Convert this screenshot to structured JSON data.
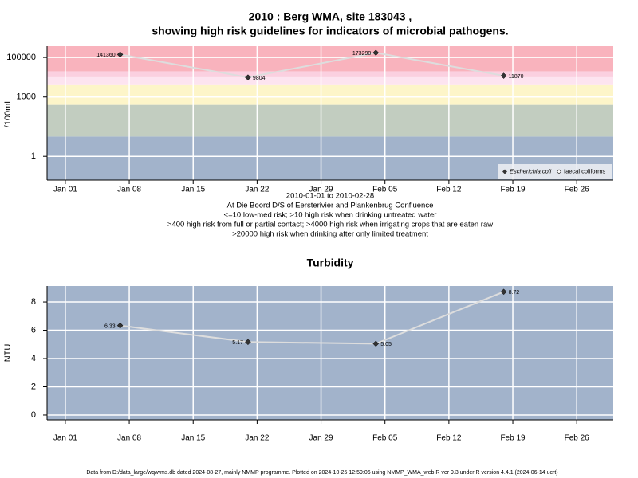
{
  "chart_data": [
    {
      "type": "line",
      "title": "2010 : Berg WMA, site 183043 ,",
      "subtitle": "showing high risk guidelines for indicators of microbial pathogens.",
      "ylabel": "/100mL",
      "x": [
        "2010-01-07",
        "2010-01-21",
        "2010-02-04",
        "2010-02-18"
      ],
      "series": [
        {
          "name": "Escherichia coli",
          "color": "#333333",
          "line_color": "#dddddd",
          "values": [
            141360,
            9804,
            173290,
            11870
          ]
        },
        {
          "name": "faecal coliforms",
          "color": "#ffffff",
          "line_color": "#ffffff",
          "values": [
            null,
            null,
            null,
            null
          ]
        }
      ],
      "xlim": [
        "2009-12-30",
        "2010-03-02"
      ],
      "xticks": [
        {
          "value": "2010-01-01",
          "label": "Jan 01"
        },
        {
          "value": "2010-01-08",
          "label": "Jan 08"
        },
        {
          "value": "2010-01-15",
          "label": "Jan 15"
        },
        {
          "value": "2010-01-22",
          "label": "Jan 22"
        },
        {
          "value": "2010-01-29",
          "label": "Jan 29"
        },
        {
          "value": "2010-02-05",
          "label": "Feb 05"
        },
        {
          "value": "2010-02-12",
          "label": "Feb 12"
        },
        {
          "value": "2010-02-19",
          "label": "Feb 19"
        },
        {
          "value": "2010-02-26",
          "label": "Feb 26"
        }
      ],
      "ylim": [
        0.063,
        370000
      ],
      "yticks": [
        1,
        1000,
        100000
      ],
      "log_y": true,
      "grid": true,
      "legend": "bottom right",
      "bands": [
        {
          "from": null,
          "to": 10,
          "color": "#a2b3cb"
        },
        {
          "from": 10,
          "to": 400,
          "color": "#c2cdc0"
        },
        {
          "from": 400,
          "to": 4000,
          "color": "#fdf5c9"
        },
        {
          "from": 4000,
          "to": 10000,
          "color": "#fde4f0"
        },
        {
          "from": 10000,
          "to": 20000,
          "color": "#fbd0e0"
        },
        {
          "from": 20000,
          "to": null,
          "color": "#f9b3bd"
        }
      ],
      "annotations": [
        "2010-01-01 to 2010-02-28",
        "At Die Boord D/S of Eersterivier and Plankenbrug Confluence",
        "<=10 low-med risk; >10 high risk when drinking untreated water",
        ">400 high risk from full or partial contact; >4000 high risk when irrigating crops that are eaten raw",
        ">20000 high risk when drinking after only limited treatment"
      ]
    },
    {
      "type": "line",
      "title": "Turbidity",
      "ylabel": "NTU",
      "x": [
        "2010-01-07",
        "2010-01-21",
        "2010-02-04",
        "2010-02-18"
      ],
      "series": [
        {
          "name": "Turbidity",
          "color": "#333333",
          "line_color": "#dddddd",
          "values": [
            6.33,
            5.17,
            5.05,
            8.72
          ]
        }
      ],
      "xlim": [
        "2009-12-30",
        "2010-03-02"
      ],
      "xticks": [
        {
          "value": "2010-01-01",
          "label": "Jan 01"
        },
        {
          "value": "2010-01-08",
          "label": "Jan 08"
        },
        {
          "value": "2010-01-15",
          "label": "Jan 15"
        },
        {
          "value": "2010-01-22",
          "label": "Jan 22"
        },
        {
          "value": "2010-01-29",
          "label": "Jan 29"
        },
        {
          "value": "2010-02-05",
          "label": "Feb 05"
        },
        {
          "value": "2010-02-12",
          "label": "Feb 12"
        },
        {
          "value": "2010-02-19",
          "label": "Feb 19"
        },
        {
          "value": "2010-02-26",
          "label": "Feb 26"
        }
      ],
      "ylim": [
        -0.34,
        9.13
      ],
      "yticks": [
        0,
        2,
        4,
        6,
        8
      ],
      "log_y": false,
      "grid": true,
      "background": "#a2b3cb"
    }
  ],
  "footer": "Data from D:/data_large/wq/wms.db dated 2024-08-27, mainly NMMP programme. Plotted on 2024-10-25 12:59:06 using NMMP_WMA_web.R ver 9.3 under R version 4.4.1 (2024-06-14 ucrt)"
}
